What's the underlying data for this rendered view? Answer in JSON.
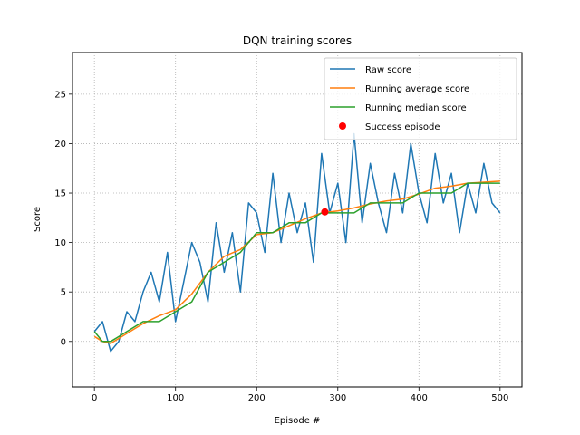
{
  "chart_data": {
    "type": "line",
    "title": "DQN training scores",
    "xlabel": "Episode #",
    "ylabel": "Score",
    "xlim": [
      -27,
      527
    ],
    "ylim": [
      -4.6,
      29.2
    ],
    "xticks": [
      0,
      100,
      200,
      300,
      400,
      500
    ],
    "yticks": [
      0,
      5,
      10,
      15,
      20,
      25
    ],
    "grid": true,
    "grid_style": "dotted",
    "legend_position": "upper-right",
    "series": [
      {
        "name": "Raw score",
        "color": "#1f77b4",
        "x": [
          0,
          10,
          20,
          30,
          40,
          50,
          60,
          70,
          80,
          90,
          100,
          110,
          120,
          130,
          140,
          150,
          160,
          170,
          180,
          190,
          200,
          210,
          220,
          230,
          240,
          250,
          260,
          270,
          280,
          290,
          300,
          310,
          320,
          330,
          340,
          350,
          360,
          370,
          380,
          390,
          400,
          410,
          420,
          430,
          440,
          450,
          460,
          470,
          480,
          490,
          500
        ],
        "values": [
          1,
          2,
          -1,
          0,
          3,
          2,
          5,
          7,
          4,
          9,
          2,
          6,
          10,
          8,
          4,
          12,
          7,
          11,
          5,
          14,
          13,
          9,
          17,
          10,
          15,
          11,
          14,
          8,
          19,
          13,
          16,
          10,
          21,
          12,
          18,
          14,
          11,
          17,
          13,
          20,
          15,
          12,
          19,
          14,
          17,
          11,
          16,
          13,
          18,
          14,
          13
        ]
      },
      {
        "name": "Running average score",
        "color": "#ff7f0e",
        "x": [
          0,
          10,
          20,
          40,
          60,
          80,
          100,
          120,
          140,
          160,
          180,
          200,
          220,
          240,
          260,
          280,
          300,
          320,
          340,
          360,
          380,
          400,
          420,
          440,
          460,
          480,
          500
        ],
        "values": [
          0.5,
          0.0,
          -0.2,
          0.8,
          1.8,
          2.6,
          3.2,
          4.8,
          7.0,
          8.6,
          9.3,
          10.8,
          11.0,
          11.7,
          12.4,
          13.0,
          13.2,
          13.5,
          13.9,
          14.2,
          14.4,
          14.9,
          15.5,
          15.7,
          16.0,
          16.1,
          16.2
        ]
      },
      {
        "name": "Running median score",
        "color": "#2ca02c",
        "x": [
          0,
          10,
          20,
          40,
          60,
          80,
          100,
          120,
          140,
          160,
          180,
          200,
          220,
          240,
          260,
          280,
          300,
          320,
          340,
          360,
          380,
          400,
          420,
          440,
          460,
          480,
          500
        ],
        "values": [
          1.0,
          0.0,
          0.0,
          1.0,
          2.0,
          2.0,
          3.0,
          4.0,
          7.0,
          8.0,
          9.0,
          11.0,
          11.0,
          12.0,
          12.0,
          13.0,
          13.0,
          13.0,
          14.0,
          14.0,
          14.0,
          15.0,
          15.0,
          15.0,
          16.0,
          16.0,
          16.0
        ]
      }
    ],
    "points": [
      {
        "name": "Success episode",
        "color": "#ff0000",
        "x": 284,
        "y": 13.1
      }
    ],
    "legend": [
      "Raw score",
      "Running average score",
      "Running median score",
      "Success episode"
    ]
  }
}
